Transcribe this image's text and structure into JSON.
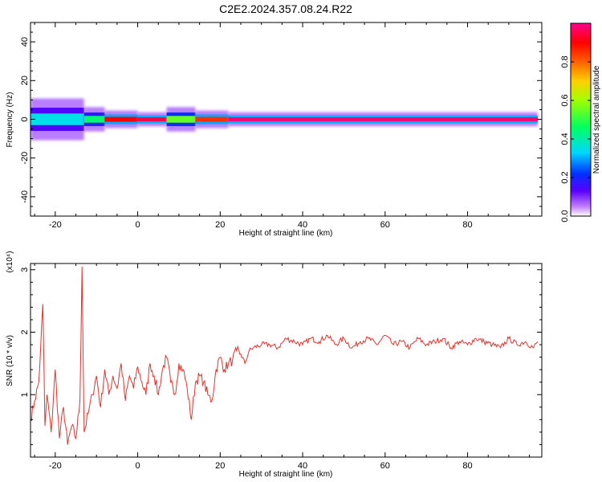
{
  "title": "C2E2.2024.357.08.24.R22",
  "colorbar": {
    "label": "Normalized spectral amplitude",
    "ticks": [
      0.0,
      0.2,
      0.4,
      0.6,
      0.8
    ],
    "tick_labels": [
      "0.0",
      "0.2",
      "0.4",
      "0.6",
      "0.8"
    ],
    "colormap": [
      "#ffffff",
      "#a600ff",
      "#0000ff",
      "#00d8ff",
      "#00ff20",
      "#d8ff00",
      "#ff8000",
      "#ff0000",
      "#ff0090"
    ]
  },
  "chart_data": [
    {
      "type": "heatmap",
      "xlabel": "Height of straight line (km)",
      "ylabel": "Frequency (Hz)",
      "xlim": [
        -26,
        98
      ],
      "ylim": [
        -50,
        50
      ],
      "xticks": [
        -20,
        0,
        20,
        40,
        60,
        80
      ],
      "xtick_labels": [
        "-20",
        "0",
        "20",
        "40",
        "60",
        "80"
      ],
      "yticks": [
        -40,
        -20,
        0,
        20,
        40
      ],
      "ytick_labels": [
        "-40",
        "-20",
        "0",
        "20",
        "40"
      ],
      "band": {
        "frequency": 0,
        "segments": [
          {
            "x0": -26,
            "x1": -13,
            "halfwidth": 6,
            "amplitude": 0.35
          },
          {
            "x0": -13,
            "x1": -8,
            "halfwidth": 3.5,
            "amplitude": 0.45
          },
          {
            "x0": -8,
            "x1": 0,
            "halfwidth": 2.5,
            "amplitude": 0.9
          },
          {
            "x0": 0,
            "x1": 7,
            "halfwidth": 2,
            "amplitude": 0.95
          },
          {
            "x0": 7,
            "x1": 14,
            "halfwidth": 3.5,
            "amplitude": 0.55
          },
          {
            "x0": 14,
            "x1": 22,
            "halfwidth": 2.5,
            "amplitude": 0.85
          },
          {
            "x0": 22,
            "x1": 97,
            "halfwidth": 2,
            "amplitude": 0.98
          }
        ]
      }
    },
    {
      "type": "line",
      "xlabel": "Height of straight line (km)",
      "ylabel": "SNR (10 * v/v)",
      "yscale_label": "(x10⁴)",
      "xlim": [
        -26,
        98
      ],
      "ylim": [
        0,
        3.1
      ],
      "xticks": [
        -20,
        0,
        20,
        40,
        60,
        80
      ],
      "xtick_labels": [
        "-20",
        "0",
        "20",
        "40",
        "60",
        "80"
      ],
      "yticks": [
        1,
        2,
        3
      ],
      "ytick_labels": [
        "1",
        "2",
        "3"
      ],
      "series": [
        {
          "color": "#e8302a",
          "x": [
            -26,
            -25,
            -24,
            -23.5,
            -23,
            -22.5,
            -22,
            -21,
            -20,
            -19,
            -18,
            -17,
            -16,
            -15,
            -14,
            -13.5,
            -13,
            -12,
            -11,
            -10,
            -9,
            -8,
            -7,
            -6,
            -5,
            -4,
            -3,
            -2,
            -1,
            0,
            1,
            2,
            3,
            4,
            5,
            6,
            7,
            8,
            9,
            10,
            11,
            12,
            13,
            14,
            15,
            16,
            17,
            18,
            19,
            20,
            21,
            22,
            23,
            24,
            25,
            26,
            27,
            28,
            30,
            32,
            34,
            36,
            38,
            40,
            42,
            44,
            46,
            48,
            50,
            52,
            54,
            56,
            58,
            60,
            62,
            64,
            66,
            68,
            70,
            72,
            74,
            76,
            78,
            80,
            82,
            84,
            86,
            88,
            90,
            92,
            94,
            96,
            97
          ],
          "y": [
            0.6,
            0.9,
            1.2,
            1.8,
            2.45,
            0.5,
            1.0,
            0.4,
            1.4,
            0.3,
            0.8,
            0.2,
            0.5,
            0.3,
            0.9,
            3.05,
            0.4,
            0.7,
            1.0,
            1.3,
            0.8,
            1.4,
            1.0,
            1.3,
            1.1,
            1.5,
            0.9,
            1.3,
            1.1,
            1.45,
            1.2,
            1.0,
            1.5,
            1.3,
            1.0,
            1.4,
            1.6,
            1.2,
            1.0,
            1.5,
            1.4,
            1.1,
            0.6,
            1.2,
            1.3,
            1.2,
            1.0,
            0.9,
            1.4,
            1.6,
            1.4,
            1.5,
            1.55,
            1.7,
            1.65,
            1.5,
            1.7,
            1.75,
            1.8,
            1.8,
            1.75,
            1.9,
            1.85,
            1.8,
            1.9,
            1.85,
            1.95,
            1.8,
            1.9,
            1.75,
            1.85,
            1.9,
            1.8,
            1.95,
            1.8,
            1.85,
            1.75,
            1.9,
            1.8,
            1.85,
            1.9,
            1.75,
            1.85,
            1.8,
            1.9,
            1.85,
            1.8,
            1.75,
            1.9,
            1.8,
            1.85,
            1.75,
            1.85
          ]
        }
      ]
    }
  ]
}
